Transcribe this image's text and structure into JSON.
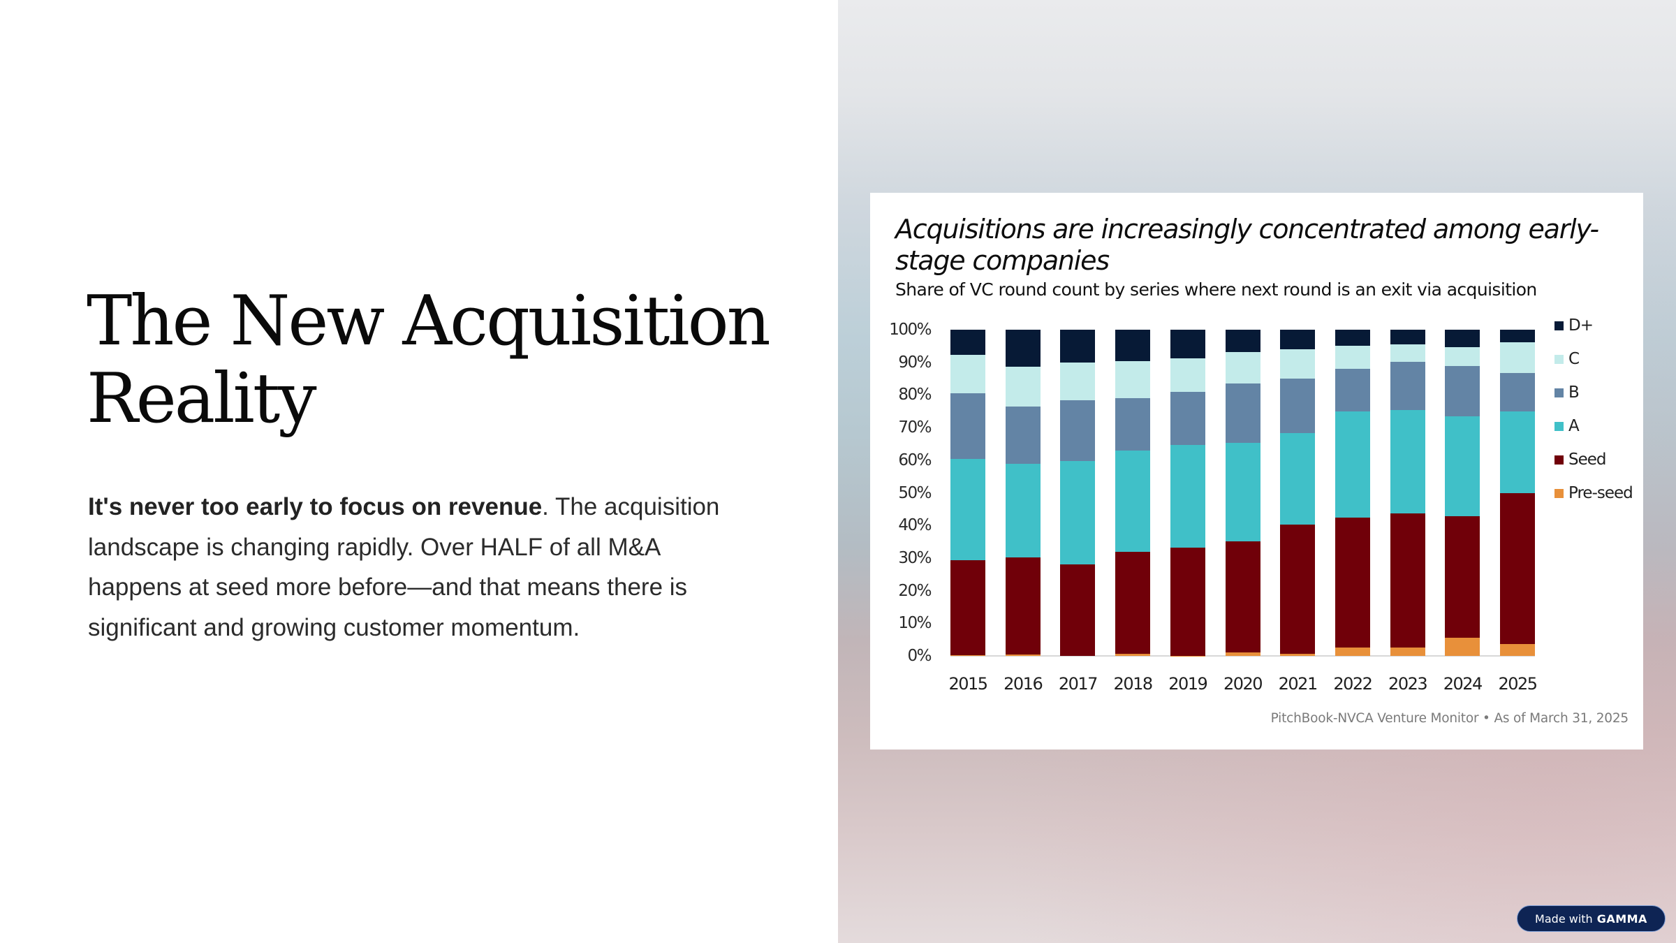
{
  "slide": {
    "title_line1": "The New Acquisition",
    "title_line2": "Reality",
    "body_lead": "It's never too early to focus on revenue",
    "body_rest": ". The acquisition landscape is changing rapidly. Over HALF of all M&A happens at seed more before—and that means there is significant and growing customer momentum."
  },
  "chart": {
    "title": "Acquisitions are increasingly concentrated among early-stage companies",
    "subtitle": "Share of VC round count by series where next round is an exit via acquisition",
    "source": "PitchBook-NVCA Venture Monitor  •  As of March 31, 2025"
  },
  "badge": {
    "made_with": "Made with",
    "brand": "GAMMA"
  },
  "colors": {
    "Pre-seed": "#e8903a",
    "Seed": "#700009",
    "A": "#40c0c8",
    "B": "#6384a5",
    "C": "#c3ebea",
    "D+": "#071a36",
    "badge_bg": "#0e2454"
  },
  "chart_data": {
    "type": "bar",
    "stacked": true,
    "normalized": true,
    "title": "Acquisitions are increasingly concentrated among early-stage companies",
    "subtitle": "Share of VC round count by series where next round is an exit via acquisition",
    "xlabel": "",
    "ylabel": "",
    "ylim": [
      0,
      100
    ],
    "y_ticks": [
      "0%",
      "10%",
      "20%",
      "30%",
      "40%",
      "50%",
      "60%",
      "70%",
      "80%",
      "90%",
      "100%"
    ],
    "grid": false,
    "legend_position": "right",
    "legend": [
      "D+",
      "C",
      "B",
      "A",
      "Seed",
      "Pre-seed"
    ],
    "categories": [
      "2015",
      "2016",
      "2017",
      "2018",
      "2019",
      "2020",
      "2021",
      "2022",
      "2023",
      "2024",
      "2025"
    ],
    "series": [
      {
        "name": "Pre-seed",
        "color": "#e8903a",
        "values": [
          0.2,
          0.4,
          0.0,
          0.7,
          0.1,
          1.1,
          0.7,
          2.6,
          2.6,
          5.6,
          3.6
        ]
      },
      {
        "name": "Seed",
        "color": "#700009",
        "values": [
          29.2,
          29.9,
          28.1,
          31.2,
          33.1,
          34.0,
          39.5,
          39.8,
          41.1,
          37.2,
          46.2
        ]
      },
      {
        "name": "A",
        "color": "#40c0c8",
        "values": [
          31.0,
          28.5,
          31.6,
          31.0,
          31.5,
          30.3,
          28.1,
          32.6,
          31.6,
          30.6,
          25.2
        ]
      },
      {
        "name": "B",
        "color": "#6384a5",
        "values": [
          20.2,
          17.7,
          18.7,
          16.2,
          16.3,
          18.1,
          16.8,
          13.0,
          14.9,
          15.5,
          11.7
        ]
      },
      {
        "name": "C",
        "color": "#c3ebea",
        "values": [
          11.8,
          12.1,
          11.5,
          11.2,
          10.2,
          9.6,
          9.0,
          7.0,
          5.4,
          5.8,
          9.5
        ]
      },
      {
        "name": "D+",
        "color": "#071a36",
        "values": [
          7.6,
          11.4,
          10.1,
          9.7,
          8.8,
          6.9,
          5.9,
          5.0,
          4.4,
          5.3,
          3.8
        ]
      }
    ],
    "source": "PitchBook-NVCA Venture Monitor • As of March 31, 2025"
  }
}
